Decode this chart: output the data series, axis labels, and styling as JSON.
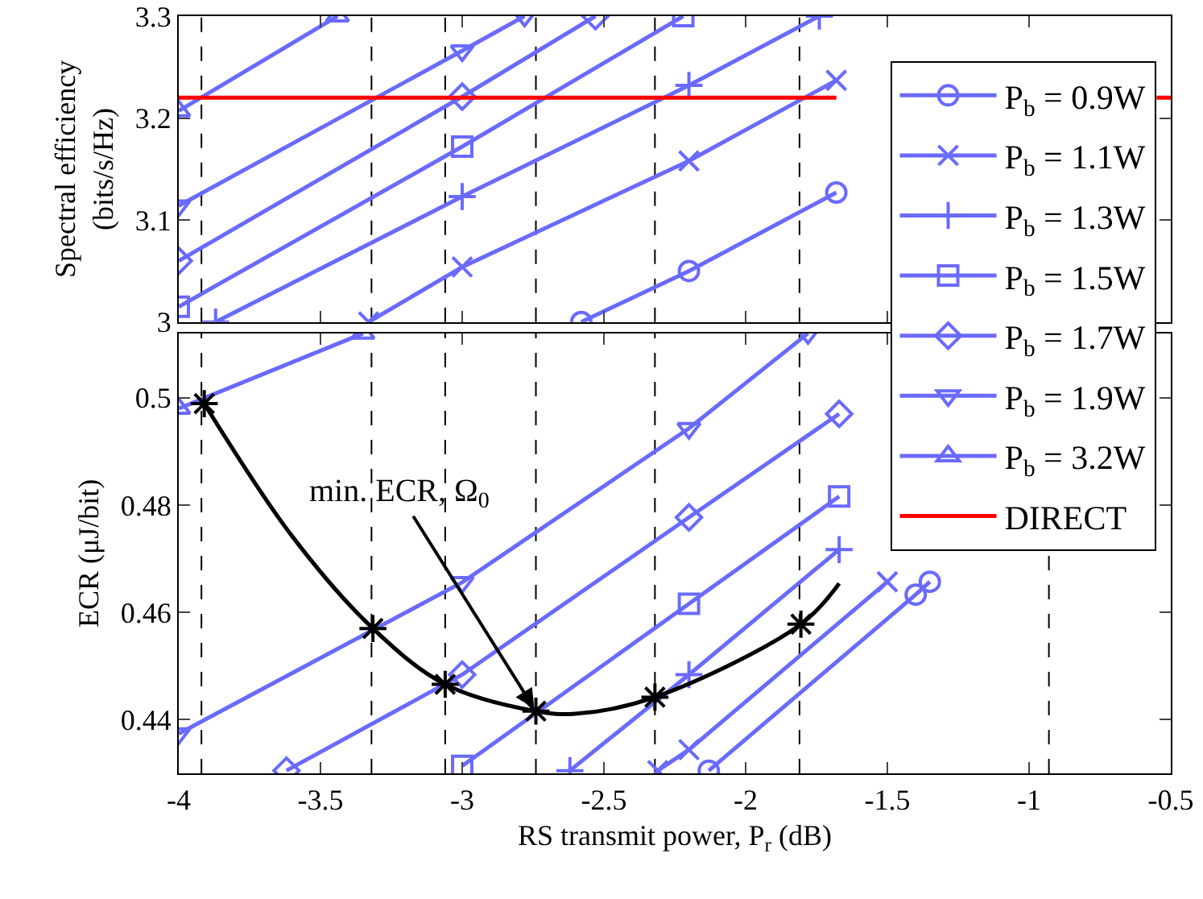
{
  "chart_data": [
    {
      "type": "line",
      "ylabel": "Spectral efficiency\n(bits/s/Hz)",
      "xlim": [
        -4,
        -0.5
      ],
      "xticks": [
        -4,
        -3.5,
        -3,
        -2.5,
        -2,
        -1.5,
        -1,
        -0.5
      ],
      "ylim": [
        3,
        3.3
      ],
      "yticks": [
        3,
        3.1,
        3.2,
        3.3
      ],
      "tick_labels": "y",
      "legend": "right",
      "series": [
        {
          "name": "P$_{b}$ = 0.9W",
          "color": "#6a6aff",
          "marker": "circle",
          "x": [
            -2.58,
            -2.2,
            -1.68
          ],
          "values": [
            3.0,
            3.05,
            3.127
          ]
        },
        {
          "name": "P$_{b}$ = 1.1W",
          "color": "#6a6aff",
          "marker": "x",
          "x": [
            -3.33,
            -3,
            -2.2,
            -1.68
          ],
          "values": [
            3.0,
            3.054,
            3.158,
            3.237
          ]
        },
        {
          "name": "P$_{b}$ = 1.3W",
          "color": "#6a6aff",
          "marker": "plus",
          "x": [
            -3.87,
            -3,
            -2.2,
            -1.74
          ],
          "values": [
            3.0,
            3.123,
            3.232,
            3.3
          ]
        },
        {
          "name": "P$_{b}$ = 1.5W",
          "color": "#6a6aff",
          "marker": "square",
          "x": [
            -4,
            -3,
            -2.22
          ],
          "values": [
            3.015,
            3.172,
            3.3
          ]
        },
        {
          "name": "P$_{b}$ = 1.7W",
          "color": "#6a6aff",
          "marker": "diamond",
          "x": [
            -4,
            -3,
            -2.53
          ],
          "values": [
            3.06,
            3.221,
            3.3
          ]
        },
        {
          "name": "P$_{b}$ = 1.9W",
          "color": "#6a6aff",
          "marker": "triangle-down",
          "x": [
            -4,
            -3,
            -2.78
          ],
          "values": [
            3.114,
            3.266,
            3.3
          ]
        },
        {
          "name": "P$_{b}$ = 3.2W",
          "color": "#6a6aff",
          "marker": "triangle",
          "x": [
            -4,
            -3.44
          ],
          "values": [
            3.207,
            3.3
          ]
        },
        {
          "name": "DIRECT",
          "color": "#ff0000",
          "marker": "none",
          "x": [
            -4,
            -1.68,
            -1.0,
            -0.55,
            -0.5
          ],
          "values": [
            3.22,
            3.22,
            null,
            3.22,
            3.22
          ]
        }
      ],
      "ref_lines": [
        {
          "axis": "x",
          "value": -3.92,
          "color": "#000000",
          "line_style": "dashed"
        },
        {
          "axis": "x",
          "value": -3.32,
          "color": "#000000",
          "line_style": "dashed"
        },
        {
          "axis": "x",
          "value": -3.06,
          "color": "#000000",
          "line_style": "dashed"
        },
        {
          "axis": "x",
          "value": -2.74,
          "color": "#000000",
          "line_style": "dashed"
        },
        {
          "axis": "x",
          "value": -2.32,
          "color": "#000000",
          "line_style": "dashed"
        },
        {
          "axis": "x",
          "value": -1.81,
          "color": "#000000",
          "line_style": "dashed"
        }
      ]
    },
    {
      "type": "line",
      "xlabel": "RS transmit power, P$_{r}$ (dB)",
      "ylabel": "ECR (μJ/bit)",
      "xlim": [
        -4,
        -0.5
      ],
      "xticks": [
        -4,
        -3.5,
        -3,
        -2.5,
        -2,
        -1.5,
        -1,
        -0.5
      ],
      "ylim": [
        0.43,
        0.512
      ],
      "yticks": [
        0.44,
        0.46,
        0.48,
        0.5
      ],
      "series": [
        {
          "color": "#6a6aff",
          "marker": "circle",
          "x": [
            -2.13,
            -1.4,
            -1.35
          ],
          "values": [
            0.4305,
            0.4633,
            0.4657
          ]
        },
        {
          "color": "#6a6aff",
          "marker": "x",
          "x": [
            -2.31,
            -2.2,
            -1.5
          ],
          "values": [
            0.4305,
            0.4344,
            0.4657
          ]
        },
        {
          "color": "#6a6aff",
          "marker": "plus",
          "x": [
            -2.62,
            -2.2,
            -1.67
          ],
          "values": [
            0.4305,
            0.4484,
            0.4717
          ]
        },
        {
          "color": "#6a6aff",
          "marker": "square",
          "x": [
            -3,
            -2.2,
            -1.67
          ],
          "values": [
            0.4314,
            0.4616,
            0.4816
          ]
        },
        {
          "color": "#6a6aff",
          "marker": "diamond",
          "x": [
            -3.62,
            -3,
            -2.2,
            -1.67
          ],
          "values": [
            0.4305,
            0.4484,
            0.4777,
            0.497
          ]
        },
        {
          "color": "#6a6aff",
          "marker": "triangle-down",
          "x": [
            -4,
            -3,
            -2.2,
            -1.78
          ],
          "values": [
            0.4374,
            0.4656,
            0.4943,
            0.512
          ]
        },
        {
          "color": "#6a6aff",
          "marker": "triangle",
          "x": [
            -4,
            -3.35
          ],
          "values": [
            0.498,
            0.512
          ]
        },
        {
          "type": "line",
          "color": "#000000",
          "marker": "none",
          "x": [
            -3.91,
            -3.6,
            -3.315,
            -3.06,
            -2.74,
            -2.6,
            -2.32,
            -1.805,
            -1.67
          ],
          "values": [
            0.4989,
            0.4742,
            0.457,
            0.4466,
            0.4416,
            0.4411,
            0.4442,
            0.4578,
            0.4654
          ]
        },
        {
          "type": "scatter",
          "color": "#000000",
          "marker": "cross",
          "x": [
            -3.91,
            -3.315,
            -3.06,
            -2.74,
            -2.32,
            -1.805
          ],
          "values": [
            0.4989,
            0.457,
            0.4466,
            0.4416,
            0.4442,
            0.4578
          ]
        }
      ],
      "annotations": [
        {
          "text": "min. ECR, Ω$_{0}$",
          "x": -2.74,
          "y": 0.4416
        }
      ],
      "ref_lines": [
        {
          "axis": "x",
          "value": -3.92,
          "color": "#000000",
          "line_style": "dashed"
        },
        {
          "axis": "x",
          "value": -3.32,
          "color": "#000000",
          "line_style": "dashed"
        },
        {
          "axis": "x",
          "value": -3.06,
          "color": "#000000",
          "line_style": "dashed"
        },
        {
          "axis": "x",
          "value": -2.74,
          "color": "#000000",
          "line_style": "dashed"
        },
        {
          "axis": "x",
          "value": -2.32,
          "color": "#000000",
          "line_style": "dashed"
        },
        {
          "axis": "x",
          "value": -1.81,
          "color": "#000000",
          "line_style": "dashed"
        },
        {
          "axis": "x",
          "value": -0.93,
          "color": "#000000",
          "line_style": "dashed"
        }
      ]
    }
  ]
}
